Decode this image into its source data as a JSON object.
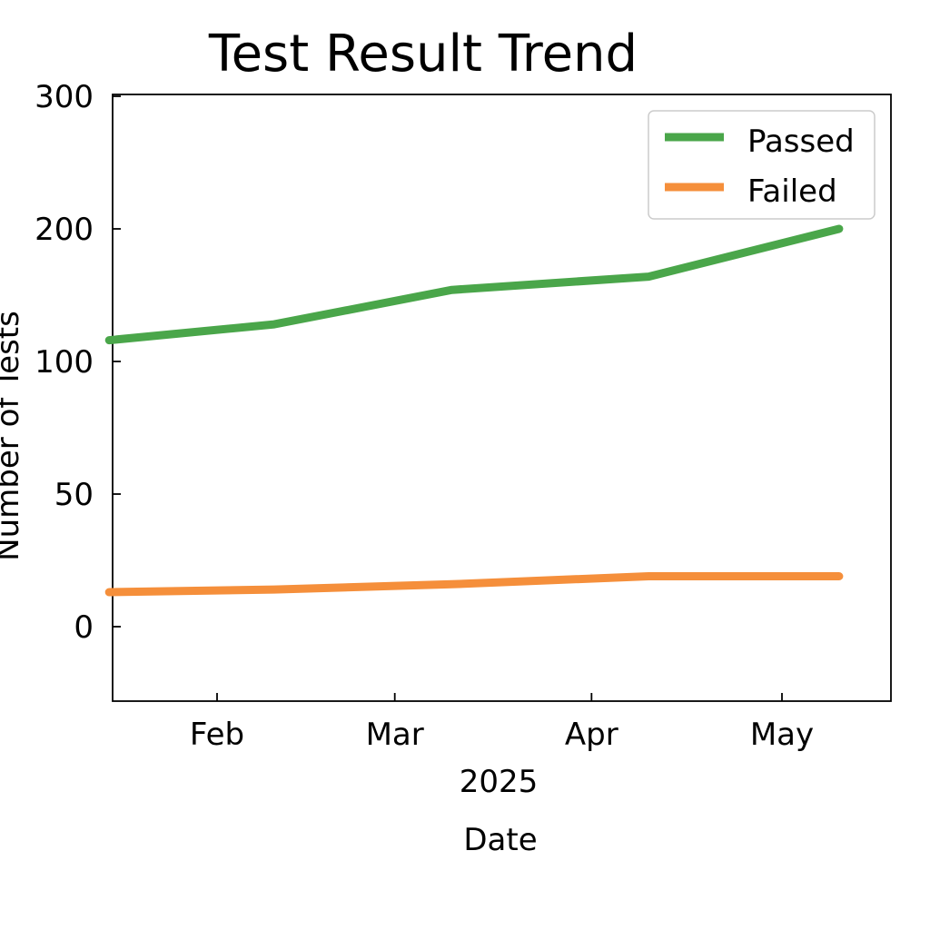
{
  "chart_data": {
    "type": "line",
    "title": "Test Result Trend",
    "xlabel": "Date",
    "x_offset_label": "2025",
    "ylabel": "Number of Tests",
    "x": [
      "2025-01-15",
      "2025-02-10",
      "2025-03-10",
      "2025-04-10",
      "2025-05-10"
    ],
    "x_ticks": [
      {
        "date": "2025-02-01",
        "label": "Feb"
      },
      {
        "date": "2025-03-01",
        "label": "Mar"
      },
      {
        "date": "2025-04-01",
        "label": "Apr"
      },
      {
        "date": "2025-05-01",
        "label": "May"
      }
    ],
    "y_ticks": [
      0,
      50,
      100,
      200,
      300
    ],
    "y_tick_positions": [
      0,
      50,
      100,
      150,
      200
    ],
    "y_tick_note": "tick labels are printed as 0, 50, 100, 200, 300 at evenly spaced gridline positions",
    "ylim": [
      -28,
      200
    ],
    "series": [
      {
        "name": "Passed",
        "color": "#4aa64a",
        "values": [
          108,
          114,
          127,
          132,
          150
        ]
      },
      {
        "name": "Failed",
        "color": "#f58f3b",
        "values": [
          13,
          14,
          16,
          19,
          19
        ]
      }
    ],
    "grid": false,
    "legend_position": "top-right"
  }
}
